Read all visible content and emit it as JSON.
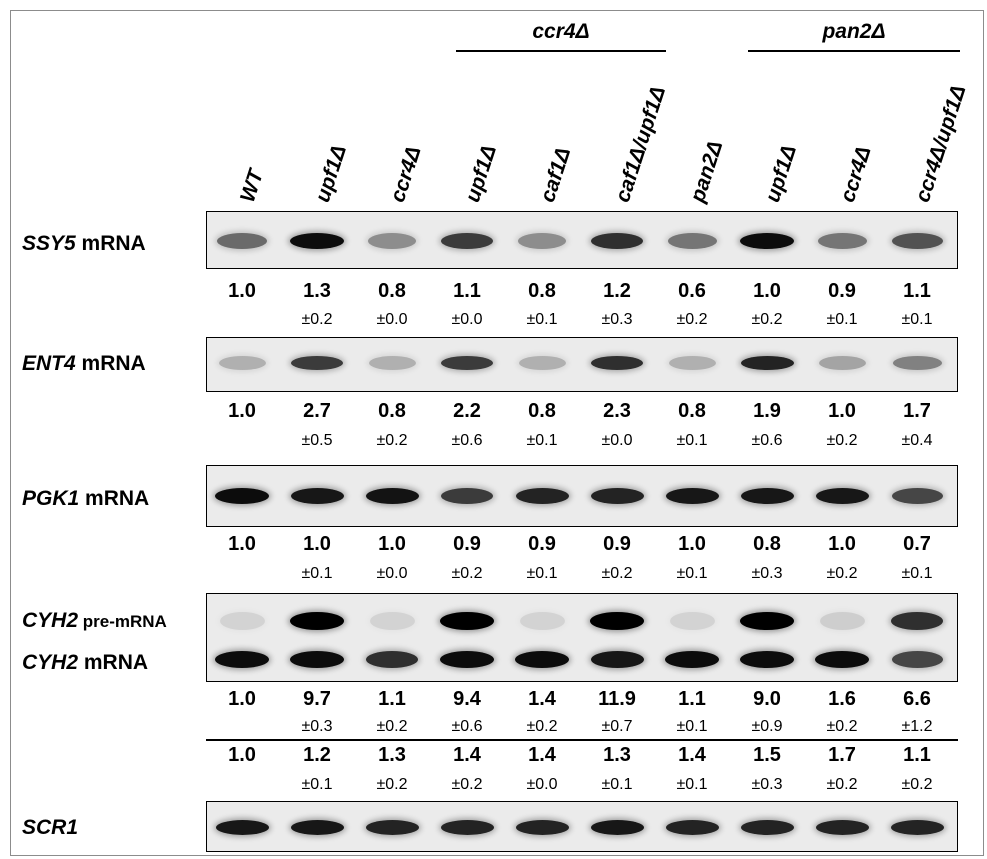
{
  "groups": [
    {
      "label": "ccr4Δ"
    },
    {
      "label": "pan2Δ"
    }
  ],
  "lanes": [
    {
      "label": "WT"
    },
    {
      "label": "upf1Δ"
    },
    {
      "label": "ccr4Δ"
    },
    {
      "label": "upf1Δ"
    },
    {
      "label": "caf1Δ"
    },
    {
      "label": "caf1Δ/upf1Δ"
    },
    {
      "label": "pan2Δ"
    },
    {
      "label": "upf1Δ"
    },
    {
      "label": "ccr4Δ"
    },
    {
      "label": "ccr4Δ/upf1Δ"
    }
  ],
  "rows": {
    "ssy5": {
      "gene": "SSY5",
      "suffix": " mRNA"
    },
    "ent4": {
      "gene": "ENT4",
      "suffix": " mRNA"
    },
    "pgk1": {
      "gene": "PGK1",
      "suffix": " mRNA"
    },
    "cyh2_pre": {
      "gene": "CYH2",
      "suffix": " pre-mRNA"
    },
    "cyh2": {
      "gene": "CYH2",
      "suffix": " mRNA"
    },
    "scr1": {
      "gene": "SCR1",
      "suffix": ""
    }
  },
  "quant": {
    "ssy5": {
      "values": [
        "1.0",
        "1.3",
        "0.8",
        "1.1",
        "0.8",
        "1.2",
        "0.6",
        "1.0",
        "0.9",
        "1.1"
      ],
      "errors": [
        "",
        "±0.2",
        "±0.0",
        "±0.0",
        "±0.1",
        "±0.3",
        "±0.2",
        "±0.2",
        "±0.1",
        "±0.1"
      ]
    },
    "ent4": {
      "values": [
        "1.0",
        "2.7",
        "0.8",
        "2.2",
        "0.8",
        "2.3",
        "0.8",
        "1.9",
        "1.0",
        "1.7"
      ],
      "errors": [
        "",
        "±0.5",
        "±0.2",
        "±0.6",
        "±0.1",
        "±0.0",
        "±0.1",
        "±0.6",
        "±0.2",
        "±0.4"
      ]
    },
    "pgk1": {
      "values": [
        "1.0",
        "1.0",
        "1.0",
        "0.9",
        "0.9",
        "0.9",
        "1.0",
        "0.8",
        "1.0",
        "0.7"
      ],
      "errors": [
        "",
        "±0.1",
        "±0.0",
        "±0.2",
        "±0.1",
        "±0.2",
        "±0.1",
        "±0.3",
        "±0.2",
        "±0.1"
      ]
    },
    "cyh2_pre": {
      "values": [
        "1.0",
        "9.7",
        "1.1",
        "9.4",
        "1.4",
        "11.9",
        "1.1",
        "9.0",
        "1.6",
        "6.6"
      ],
      "errors": [
        "",
        "±0.3",
        "±0.2",
        "±0.6",
        "±0.2",
        "±0.7",
        "±0.1",
        "±0.9",
        "±0.2",
        "±1.2"
      ]
    },
    "cyh2": {
      "values": [
        "1.0",
        "1.2",
        "1.3",
        "1.4",
        "1.4",
        "1.3",
        "1.4",
        "1.5",
        "1.7",
        "1.1"
      ],
      "errors": [
        "",
        "±0.1",
        "±0.2",
        "±0.2",
        "±0.0",
        "±0.1",
        "±0.1",
        "±0.3",
        "±0.2",
        "±0.2"
      ]
    }
  },
  "band_intensity": {
    "ssy5": [
      0.55,
      0.95,
      0.4,
      0.75,
      0.4,
      0.8,
      0.5,
      0.95,
      0.5,
      0.65
    ],
    "ent4": [
      0.25,
      0.75,
      0.25,
      0.75,
      0.25,
      0.8,
      0.25,
      0.85,
      0.3,
      0.45
    ],
    "pgk1": [
      0.95,
      0.9,
      0.92,
      0.75,
      0.85,
      0.85,
      0.9,
      0.9,
      0.9,
      0.7
    ],
    "cyh2_pre": [
      0.1,
      1.0,
      0.1,
      1.0,
      0.1,
      1.0,
      0.1,
      1.0,
      0.12,
      0.8
    ],
    "cyh2": [
      0.95,
      0.95,
      0.8,
      0.95,
      0.95,
      0.9,
      0.95,
      0.95,
      0.95,
      0.7
    ],
    "scr1": [
      0.9,
      0.9,
      0.85,
      0.85,
      0.85,
      0.9,
      0.85,
      0.85,
      0.85,
      0.85
    ]
  }
}
